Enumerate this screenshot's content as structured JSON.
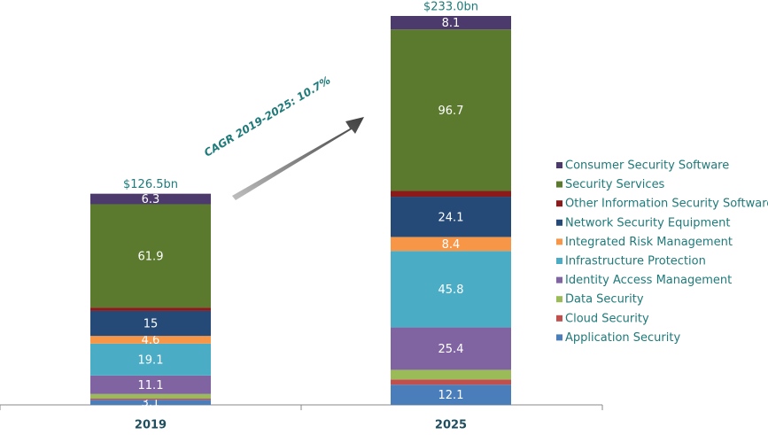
{
  "chart_data": {
    "type": "stacked_bar",
    "categories": [
      "2019",
      "2025"
    ],
    "annotation": "CAGR 2019-2025: 10.7%",
    "totals": {
      "values": [
        126.5,
        233.0
      ],
      "value_labels": [
        "$126.5bn",
        "$233.0bn"
      ]
    },
    "series": [
      {
        "name": "Application Security",
        "color": "#4a7ebb",
        "values": [
          3.1,
          12.1
        ],
        "data_labels": true
      },
      {
        "name": "Cloud Security",
        "color": "#c0504d",
        "values": [
          0.8,
          3.1
        ],
        "data_labels": false
      },
      {
        "name": "Data Security",
        "color": "#9bbb59",
        "values": [
          2.6,
          5.8
        ],
        "data_labels": false
      },
      {
        "name": "Identity Access Management",
        "color": "#8064a2",
        "values": [
          11.1,
          25.4
        ],
        "data_labels": true
      },
      {
        "name": "Infrastructure Protection",
        "color": "#4bacc6",
        "values": [
          19.1,
          45.8
        ],
        "data_labels": true
      },
      {
        "name": "Integrated Risk Management",
        "color": "#f79646",
        "values": [
          4.6,
          8.4
        ],
        "data_labels": true
      },
      {
        "name": "Network Security Equipment",
        "color": "#254a78",
        "values": [
          15,
          24.1
        ],
        "data_labels": true
      },
      {
        "name": "Other Information Security Software",
        "color": "#8b1a1a",
        "values": [
          2.0,
          3.5
        ],
        "data_labels": false
      },
      {
        "name": "Security Services",
        "color": "#5b7a2e",
        "values": [
          61.9,
          96.7
        ],
        "data_labels": true
      },
      {
        "name": "Consumer Security Software",
        "color": "#4b3a6b",
        "values": [
          6.3,
          8.1
        ],
        "data_labels": true
      }
    ]
  }
}
